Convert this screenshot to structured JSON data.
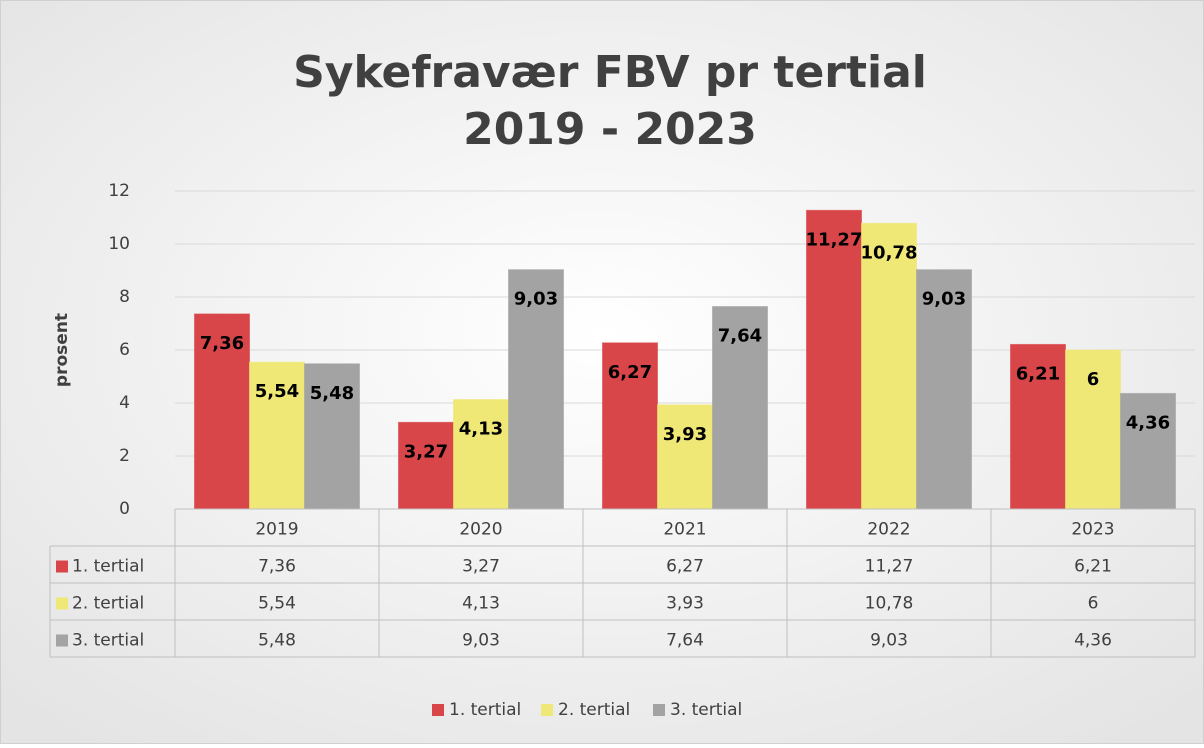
{
  "chart_data": {
    "type": "bar",
    "title": [
      "Sykefravær FBV pr tertial",
      "2019 - 2023"
    ],
    "y_label": "prosent",
    "categories": [
      "2019",
      "2020",
      "2021",
      "2022",
      "2023"
    ],
    "series": [
      {
        "name": "1. tertial",
        "color": "#d9464a",
        "values": [
          7.36,
          3.27,
          6.27,
          11.27,
          6.21
        ],
        "value_labels": [
          "7,36",
          "3,27",
          "6,27",
          "11,27",
          "6,21"
        ]
      },
      {
        "name": "2. tertial",
        "color": "#efe877",
        "values": [
          5.54,
          4.13,
          3.93,
          10.78,
          6
        ],
        "value_labels": [
          "5,54",
          "4,13",
          "3,93",
          "10,78",
          "6"
        ]
      },
      {
        "name": "3. tertial",
        "color": "#a3a3a3",
        "values": [
          5.48,
          9.03,
          7.64,
          9.03,
          4.36
        ],
        "value_labels": [
          "5,48",
          "9,03",
          "7,64",
          "9,03",
          "4,36"
        ]
      }
    ],
    "ylim": [
      0,
      12
    ],
    "yticks": [
      0,
      2,
      4,
      6,
      8,
      10,
      12
    ],
    "grid": true,
    "legend": "bottom",
    "data_table": true
  }
}
